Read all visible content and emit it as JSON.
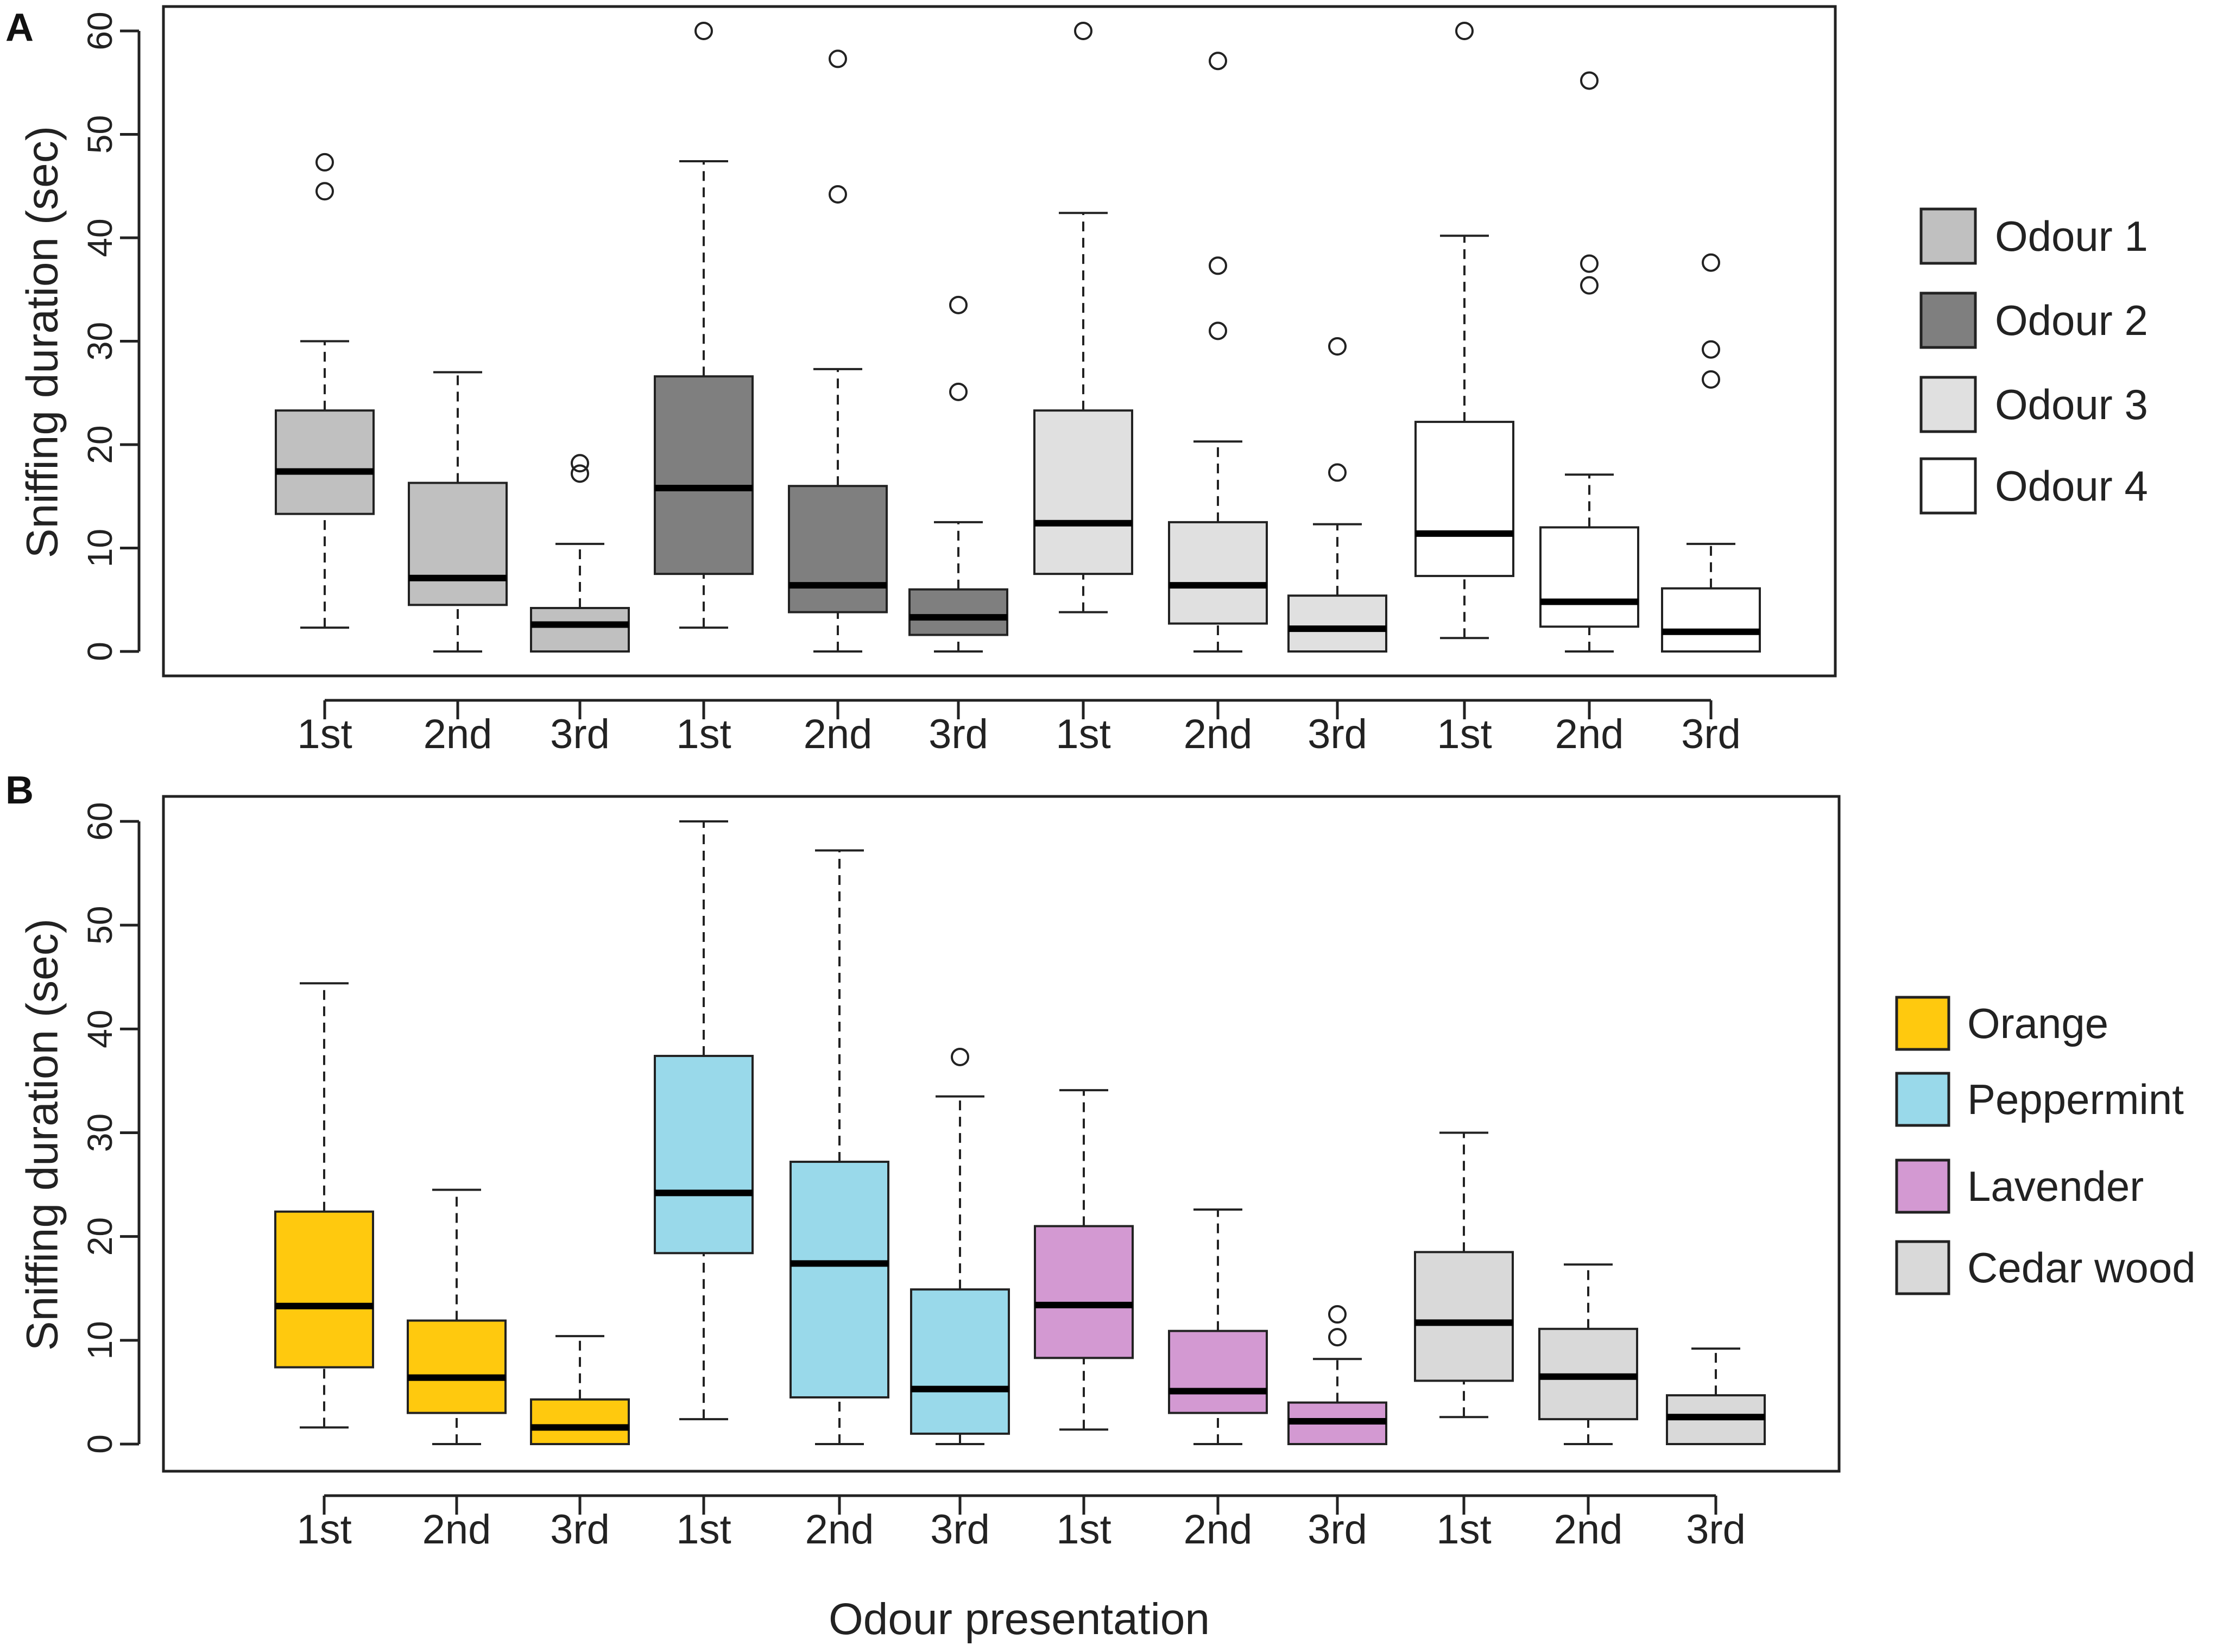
{
  "figure": {
    "xlabel": "Odour presentation",
    "ylabel": "Sniffing duration (sec)"
  },
  "chart_data": [
    {
      "panel": "A",
      "type": "box",
      "ylabel": "Sniffing duration (sec)",
      "ylim": [
        0,
        60
      ],
      "yticks": [
        0,
        10,
        20,
        30,
        40,
        50,
        60
      ],
      "categories": [
        "1st",
        "2nd",
        "3rd",
        "1st",
        "2nd",
        "3rd",
        "1st",
        "2nd",
        "3rd",
        "1st",
        "2nd",
        "3rd"
      ],
      "legend": [
        {
          "name": "Odour 1",
          "color": "#c0c0c0"
        },
        {
          "name": "Odour 2",
          "color": "#7f7f7f"
        },
        {
          "name": "Odour 3",
          "color": "#e0e0e0"
        },
        {
          "name": "Odour 4",
          "color": "#ffffff"
        }
      ],
      "boxes": [
        {
          "group": "Odour 1",
          "presentation": "1st",
          "whisker_low": 2.3,
          "q1": 13.3,
          "median": 17.4,
          "q3": 23.3,
          "whisker_high": 30.0,
          "outliers": [
            44.5,
            47.3
          ]
        },
        {
          "group": "Odour 1",
          "presentation": "2nd",
          "whisker_low": 0.0,
          "q1": 4.5,
          "median": 7.1,
          "q3": 16.3,
          "whisker_high": 27.0,
          "outliers": []
        },
        {
          "group": "Odour 1",
          "presentation": "3rd",
          "whisker_low": 0.0,
          "q1": 0.0,
          "median": 2.6,
          "q3": 4.2,
          "whisker_high": 10.4,
          "outliers": [
            17.2,
            18.2
          ]
        },
        {
          "group": "Odour 2",
          "presentation": "1st",
          "whisker_low": 2.3,
          "q1": 7.5,
          "median": 15.8,
          "q3": 26.6,
          "whisker_high": 47.4,
          "outliers": [
            60.0
          ]
        },
        {
          "group": "Odour 2",
          "presentation": "2nd",
          "whisker_low": 0.0,
          "q1": 3.8,
          "median": 6.4,
          "q3": 16.0,
          "whisker_high": 27.3,
          "outliers": [
            44.2,
            57.3
          ]
        },
        {
          "group": "Odour 2",
          "presentation": "3rd",
          "whisker_low": 0.0,
          "q1": 1.6,
          "median": 3.3,
          "q3": 6.0,
          "whisker_high": 12.5,
          "outliers": [
            25.1,
            33.5
          ]
        },
        {
          "group": "Odour 3",
          "presentation": "1st",
          "whisker_low": 3.8,
          "q1": 7.5,
          "median": 12.4,
          "q3": 23.3,
          "whisker_high": 42.4,
          "outliers": [
            60.0
          ]
        },
        {
          "group": "Odour 3",
          "presentation": "2nd",
          "whisker_low": 0.0,
          "q1": 2.7,
          "median": 6.4,
          "q3": 12.5,
          "whisker_high": 20.3,
          "outliers": [
            31.0,
            37.3,
            57.1
          ]
        },
        {
          "group": "Odour 3",
          "presentation": "3rd",
          "whisker_low": 0.0,
          "q1": 0.0,
          "median": 2.2,
          "q3": 5.4,
          "whisker_high": 12.3,
          "outliers": [
            17.3,
            29.5
          ]
        },
        {
          "group": "Odour 4",
          "presentation": "1st",
          "whisker_low": 1.3,
          "q1": 7.3,
          "median": 11.4,
          "q3": 22.2,
          "whisker_high": 40.2,
          "outliers": [
            60.0
          ]
        },
        {
          "group": "Odour 4",
          "presentation": "2nd",
          "whisker_low": 0.0,
          "q1": 2.4,
          "median": 4.8,
          "q3": 12.0,
          "whisker_high": 17.1,
          "outliers": [
            35.4,
            37.5,
            55.2
          ]
        },
        {
          "group": "Odour 4",
          "presentation": "3rd",
          "whisker_low": 0.0,
          "q1": 0.0,
          "median": 1.9,
          "q3": 6.1,
          "whisker_high": 10.4,
          "outliers": [
            26.3,
            29.2,
            37.6
          ]
        }
      ]
    },
    {
      "panel": "B",
      "type": "box",
      "ylabel": "Sniffing duration (sec)",
      "xlabel": "Odour presentation",
      "ylim": [
        0,
        60
      ],
      "yticks": [
        0,
        10,
        20,
        30,
        40,
        50,
        60
      ],
      "categories": [
        "1st",
        "2nd",
        "3rd",
        "1st",
        "2nd",
        "3rd",
        "1st",
        "2nd",
        "3rd",
        "1st",
        "2nd",
        "3rd"
      ],
      "legend": [
        {
          "name": "Orange",
          "color": "#ffc90e"
        },
        {
          "name": "Peppermint",
          "color": "#99d9ea"
        },
        {
          "name": "Lavender",
          "color": "#d399d2"
        },
        {
          "name": "Cedar wood",
          "color": "#d9d9d9"
        }
      ],
      "boxes": [
        {
          "group": "Orange",
          "presentation": "1st",
          "whisker_low": 1.6,
          "q1": 7.4,
          "median": 13.3,
          "q3": 22.4,
          "whisker_high": 44.4,
          "outliers": []
        },
        {
          "group": "Orange",
          "presentation": "2nd",
          "whisker_low": 0.0,
          "q1": 3.0,
          "median": 6.4,
          "q3": 11.9,
          "whisker_high": 24.5,
          "outliers": []
        },
        {
          "group": "Orange",
          "presentation": "3rd",
          "whisker_low": 0.0,
          "q1": 0.0,
          "median": 1.6,
          "q3": 4.3,
          "whisker_high": 10.4,
          "outliers": []
        },
        {
          "group": "Peppermint",
          "presentation": "1st",
          "whisker_low": 2.4,
          "q1": 18.4,
          "median": 24.2,
          "q3": 37.4,
          "whisker_high": 60.0,
          "outliers": []
        },
        {
          "group": "Peppermint",
          "presentation": "2nd",
          "whisker_low": 0.0,
          "q1": 4.5,
          "median": 17.4,
          "q3": 27.2,
          "whisker_high": 57.2,
          "outliers": []
        },
        {
          "group": "Peppermint",
          "presentation": "3rd",
          "whisker_low": 0.0,
          "q1": 1.0,
          "median": 5.3,
          "q3": 14.9,
          "whisker_high": 33.5,
          "outliers": [
            37.3
          ]
        },
        {
          "group": "Lavender",
          "presentation": "1st",
          "whisker_low": 1.4,
          "q1": 8.3,
          "median": 13.4,
          "q3": 21.0,
          "whisker_high": 34.1,
          "outliers": []
        },
        {
          "group": "Lavender",
          "presentation": "2nd",
          "whisker_low": 0.0,
          "q1": 3.0,
          "median": 5.1,
          "q3": 10.9,
          "whisker_high": 22.6,
          "outliers": []
        },
        {
          "group": "Lavender",
          "presentation": "3rd",
          "whisker_low": 0.0,
          "q1": 0.0,
          "median": 2.2,
          "q3": 4.0,
          "whisker_high": 8.2,
          "outliers": [
            10.3,
            12.5
          ]
        },
        {
          "group": "Cedar wood",
          "presentation": "1st",
          "whisker_low": 2.6,
          "q1": 6.1,
          "median": 11.7,
          "q3": 18.5,
          "whisker_high": 30.0,
          "outliers": []
        },
        {
          "group": "Cedar wood",
          "presentation": "2nd",
          "whisker_low": 0.0,
          "q1": 2.4,
          "median": 6.5,
          "q3": 11.1,
          "whisker_high": 17.3,
          "outliers": []
        },
        {
          "group": "Cedar wood",
          "presentation": "3rd",
          "whisker_low": 0.0,
          "q1": 0.0,
          "median": 2.6,
          "q3": 4.7,
          "whisker_high": 9.2,
          "outliers": []
        }
      ]
    }
  ]
}
